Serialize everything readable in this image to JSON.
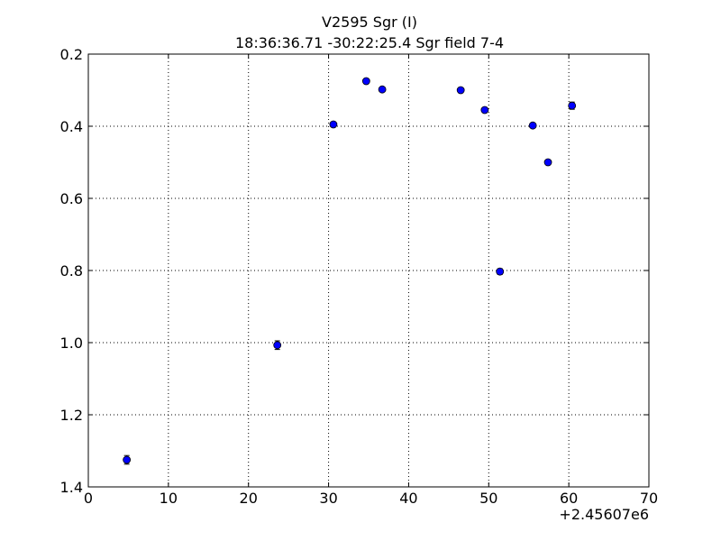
{
  "chart_data": {
    "type": "scatter",
    "title": "V2595 Sgr  (I)",
    "subtitle": "18:36:36.71 -30:22:25.4 Sgr field 7-4",
    "x": [
      4.8,
      23.6,
      30.6,
      34.7,
      36.7,
      46.5,
      49.5,
      51.4,
      55.5,
      57.4,
      60.4
    ],
    "series": [
      {
        "color": "#0000ff",
        "values": [
          1.325,
          1.007,
          0.395,
          0.275,
          0.298,
          0.3,
          0.355,
          0.803,
          0.398,
          0.5,
          0.343
        ],
        "errors": [
          0.012,
          0.012,
          0.006,
          0.006,
          0.006,
          0.006,
          0.006,
          0.008,
          0.006,
          0.006,
          0.01
        ]
      }
    ],
    "xlim": [
      0,
      70
    ],
    "xticks": [
      0,
      10,
      20,
      30,
      40,
      50,
      60,
      70
    ],
    "x_offset_label": "+2.45607e6",
    "ylim": [
      1.4,
      0.2
    ],
    "yticks": [
      0.2,
      0.4,
      0.6,
      0.8,
      {
        "value": 1.0,
        "label": "1.0"
      },
      1.2,
      1.4
    ],
    "grid": true
  }
}
